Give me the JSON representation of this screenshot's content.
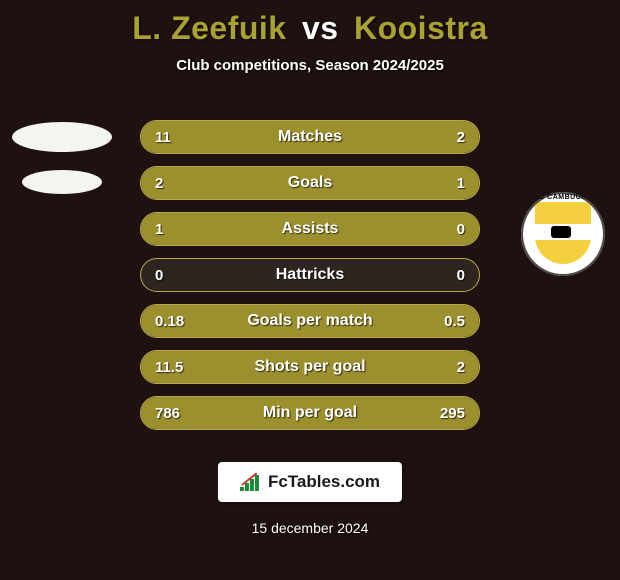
{
  "background_color": "#1e1110",
  "title": {
    "player1": "L. Zeefuik",
    "vs": "vs",
    "player2": "Kooistra",
    "player1_color": "#a8a232",
    "vs_color": "#ffffff",
    "player2_color": "#a8a232"
  },
  "subtitle": "Club competitions, Season 2024/2025",
  "left_crest": {
    "label": ""
  },
  "right_crest": {
    "label": "C CAMBUUR"
  },
  "rows": [
    {
      "label": "Matches",
      "left": "11",
      "right": "2",
      "left_pct": 84,
      "right_pct": 16
    },
    {
      "label": "Goals",
      "left": "2",
      "right": "1",
      "left_pct": 66,
      "right_pct": 34
    },
    {
      "label": "Assists",
      "left": "1",
      "right": "0",
      "left_pct": 100,
      "right_pct": 0
    },
    {
      "label": "Hattricks",
      "left": "0",
      "right": "0",
      "left_pct": 0,
      "right_pct": 0
    },
    {
      "label": "Goals per match",
      "left": "0.18",
      "right": "0.5",
      "left_pct": 27,
      "right_pct": 73
    },
    {
      "label": "Shots per goal",
      "left": "11.5",
      "right": "2",
      "left_pct": 85,
      "right_pct": 15
    },
    {
      "label": "Min per goal",
      "left": "786",
      "right": "295",
      "left_pct": 73,
      "right_pct": 27
    }
  ],
  "row_style": {
    "track_color": "#2f2520",
    "fill_left_color": "#9c8f2d",
    "fill_right_color": "#9c8f2d",
    "border_color": "#b7a94a"
  },
  "footer": {
    "brand": "FcTables.com"
  },
  "date": "15 december 2024"
}
